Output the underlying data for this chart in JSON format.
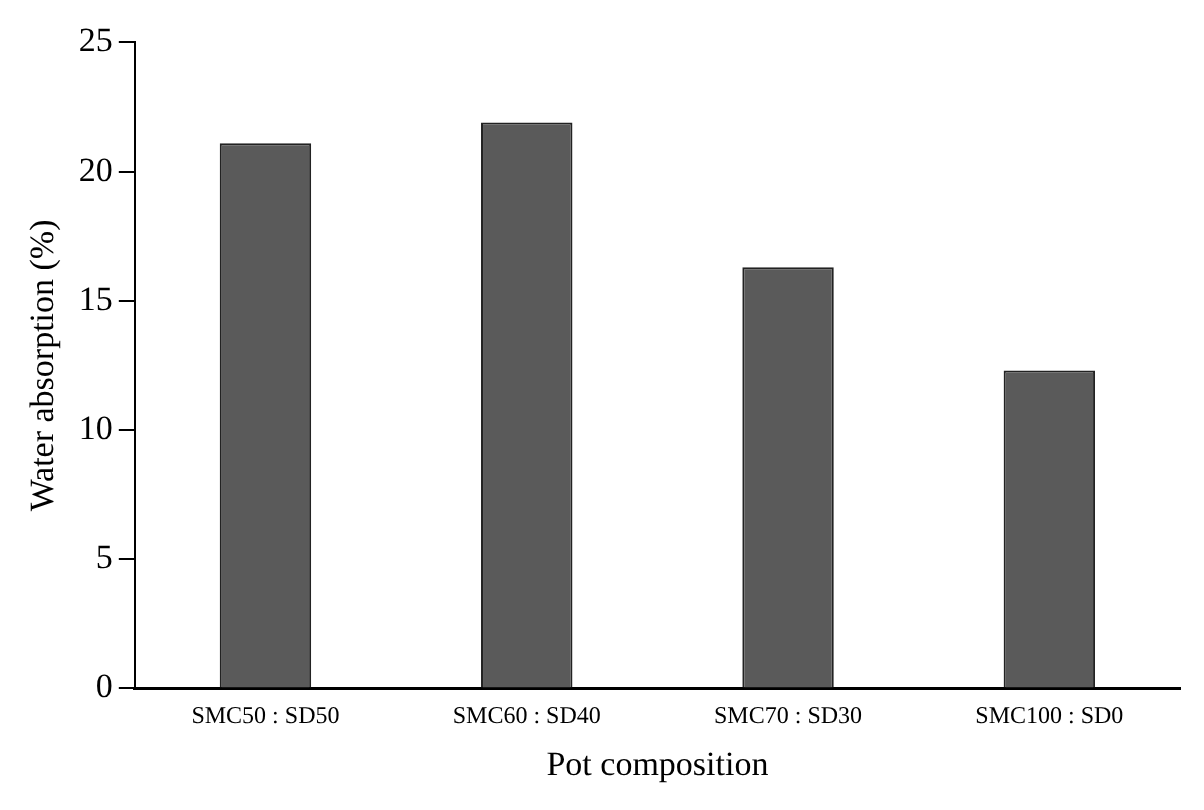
{
  "chart_data": {
    "type": "bar",
    "xlabel": "Pot composition",
    "ylabel": "Water absorption (%)",
    "categories": [
      "SMC50 : SD50",
      "SMC60 : SD40",
      "SMC70 : SD30",
      "SMC100 : SD0"
    ],
    "values": [
      21.1,
      21.9,
      16.3,
      12.3
    ],
    "color": "#5a5a5a",
    "ylim": [
      0,
      25
    ],
    "yticks": [
      0,
      5,
      10,
      15,
      20,
      25
    ],
    "grid": false,
    "legend": false
  }
}
